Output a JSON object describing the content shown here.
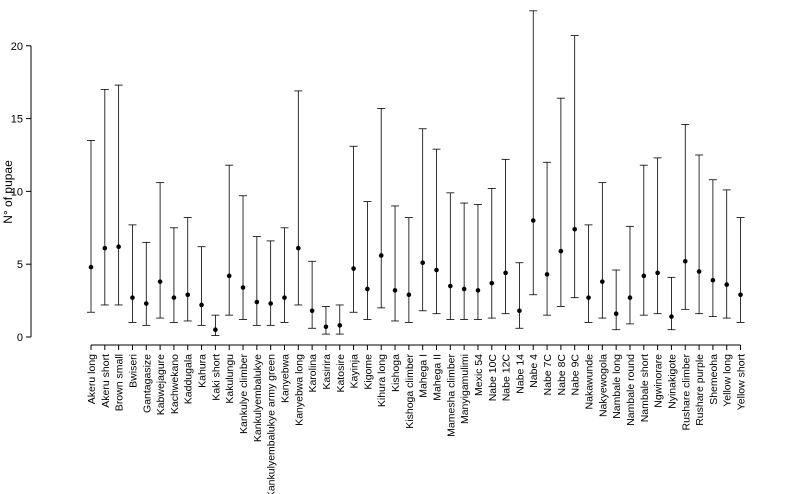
{
  "chart_data": {
    "type": "scatter",
    "title": "",
    "xlabel": "",
    "ylabel": "N° of pupae",
    "ylim": [
      0,
      22.8
    ],
    "yticks": [
      0,
      5,
      10,
      15,
      20
    ],
    "grid": false,
    "error_bars": true,
    "categories": [
      "Akeru long",
      "Akeru short",
      "Brown small",
      "Bwiseri",
      "Gantagasize",
      "Kabwejagure",
      "Kachwekano",
      "Kaddugala",
      "Kahura",
      "Kaki short",
      "Kakulungu",
      "Kankulye climber",
      "Kankulyembalukye",
      "Kankulyembalukye army green",
      "Kanyebwa",
      "Kanyebwa  long",
      "Karolina",
      "Kasirira",
      "Katosire",
      "Kayinja",
      "Kigome",
      "Kihura long",
      "Kishoga",
      "Kishoga climber",
      "Mahega I",
      "Mahega II",
      "Mamesha climber",
      "Manyigamulimi",
      "Mexic 54",
      "Nabe 10C",
      "Nabe 12C",
      "Nabe 14",
      "Nabe 4",
      "Nabe 7C",
      "Nabe 8C",
      "Nabe 9C",
      "Nakawunde",
      "Nakyewogola",
      "Nambale long",
      "Nambale round",
      "Nambale short",
      "Ngwinorare",
      "Nyinakigote",
      "Rushare climber",
      "Rushare purple",
      "Shemeoha",
      "Yellow long",
      "Yellow short"
    ],
    "values": [
      4.8,
      6.1,
      6.2,
      2.7,
      2.3,
      3.8,
      2.7,
      2.9,
      2.2,
      0.5,
      4.2,
      3.4,
      2.4,
      2.3,
      2.7,
      6.1,
      1.8,
      0.7,
      0.8,
      4.7,
      3.3,
      5.6,
      3.2,
      2.9,
      5.1,
      4.6,
      3.5,
      3.3,
      3.2,
      3.7,
      4.4,
      1.8,
      8.0,
      4.3,
      5.9,
      7.4,
      2.7,
      3.8,
      1.6,
      2.7,
      4.2,
      4.4,
      1.4,
      5.2,
      4.5,
      3.9,
      3.6,
      2.9
    ],
    "lower": [
      1.7,
      2.2,
      2.2,
      1.0,
      0.8,
      1.3,
      1.0,
      1.1,
      0.8,
      0.1,
      1.5,
      1.2,
      0.8,
      0.8,
      1.0,
      2.2,
      0.6,
      0.2,
      0.2,
      1.7,
      1.2,
      2.0,
      1.1,
      1.0,
      1.8,
      1.6,
      1.2,
      1.2,
      1.2,
      1.3,
      1.6,
      0.6,
      2.9,
      1.5,
      2.1,
      2.7,
      1.0,
      1.3,
      0.5,
      0.9,
      1.5,
      1.6,
      0.5,
      1.9,
      1.6,
      1.4,
      1.3,
      1.0
    ],
    "upper": [
      13.5,
      17.0,
      17.3,
      7.7,
      6.5,
      10.6,
      7.5,
      8.2,
      6.2,
      1.5,
      11.8,
      9.7,
      6.9,
      6.6,
      7.5,
      16.9,
      5.2,
      2.1,
      2.2,
      13.1,
      9.3,
      15.7,
      9.0,
      8.2,
      14.3,
      12.9,
      9.9,
      9.2,
      9.1,
      10.2,
      12.2,
      5.1,
      22.4,
      12.0,
      16.4,
      20.7,
      7.7,
      10.6,
      4.6,
      7.6,
      11.8,
      12.3,
      4.1,
      14.6,
      12.5,
      10.8,
      10.1,
      8.2
    ]
  }
}
